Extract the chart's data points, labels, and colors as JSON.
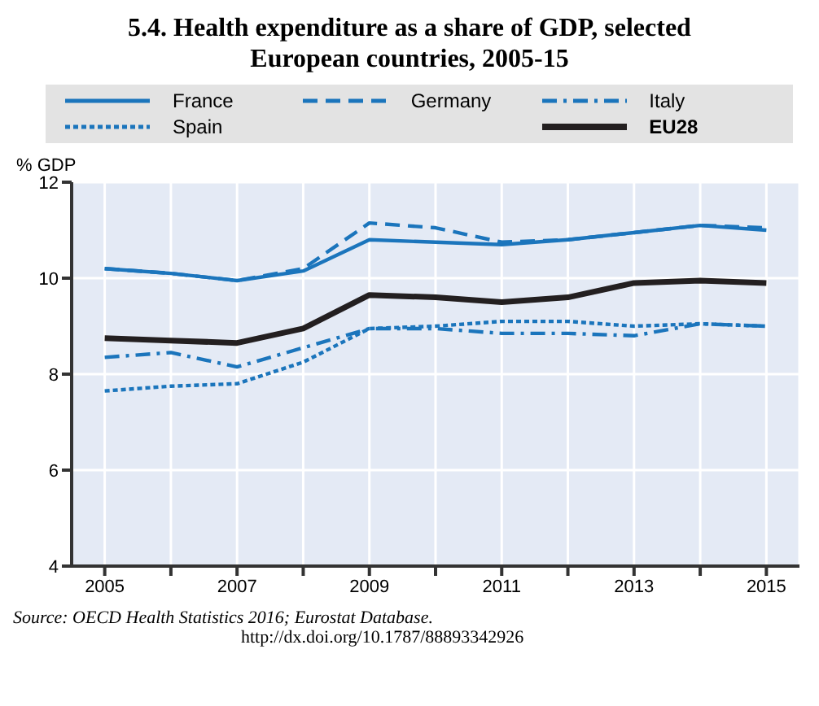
{
  "chart_data": {
    "type": "line",
    "title": "5.4. Health expenditure as a share of GDP, selected European countries, 2005-15",
    "ylabel": "% GDP",
    "annotations": [
      "Source: OECD Health Statistics 2016; Eurostat Database.",
      "http://dx.doi.org/10.1787/88893342926"
    ],
    "x": [
      2005,
      2006,
      2007,
      2008,
      2009,
      2010,
      2011,
      2012,
      2013,
      2014,
      2015
    ],
    "series": [
      {
        "name": "France",
        "color": "#1b75bc",
        "line_style": "solid",
        "values": [
          10.2,
          10.1,
          9.95,
          10.15,
          10.8,
          10.75,
          10.7,
          10.8,
          10.95,
          11.1,
          11.0
        ]
      },
      {
        "name": "Germany",
        "color": "#1b75bc",
        "line_style": "dashed",
        "values": [
          10.2,
          10.1,
          9.95,
          10.2,
          11.15,
          11.05,
          10.75,
          10.8,
          10.95,
          11.1,
          11.05
        ]
      },
      {
        "name": "Italy",
        "color": "#1b75bc",
        "line_style": "dashdot",
        "values": [
          8.35,
          8.45,
          8.15,
          8.55,
          8.95,
          8.95,
          8.85,
          8.85,
          8.8,
          9.05,
          9.0
        ]
      },
      {
        "name": "Spain",
        "color": "#1b75bc",
        "line_style": "dotted",
        "values": [
          7.65,
          7.75,
          7.8,
          8.25,
          8.95,
          9.0,
          9.1,
          9.1,
          9.0,
          9.05,
          9.0
        ]
      },
      {
        "name": "EU28",
        "color": "#231f20",
        "line_style": "solid",
        "values": [
          8.75,
          8.7,
          8.65,
          8.95,
          9.65,
          9.6,
          9.5,
          9.6,
          9.9,
          9.95,
          9.9
        ]
      }
    ],
    "xlim": [
      2004.5,
      2015.5
    ],
    "xticks": [
      2005,
      {
        "value": 2006,
        "label": null
      },
      2007,
      {
        "value": 2008,
        "label": null
      },
      2009,
      {
        "value": 2010,
        "label": null
      },
      2011,
      {
        "value": 2012,
        "label": null
      },
      2013,
      {
        "value": 2014,
        "label": null
      },
      2015
    ],
    "ylim": [
      4,
      12
    ],
    "yticks": [
      4,
      6,
      8,
      10,
      12
    ],
    "grid": true,
    "legend": "top",
    "marker": "none"
  }
}
